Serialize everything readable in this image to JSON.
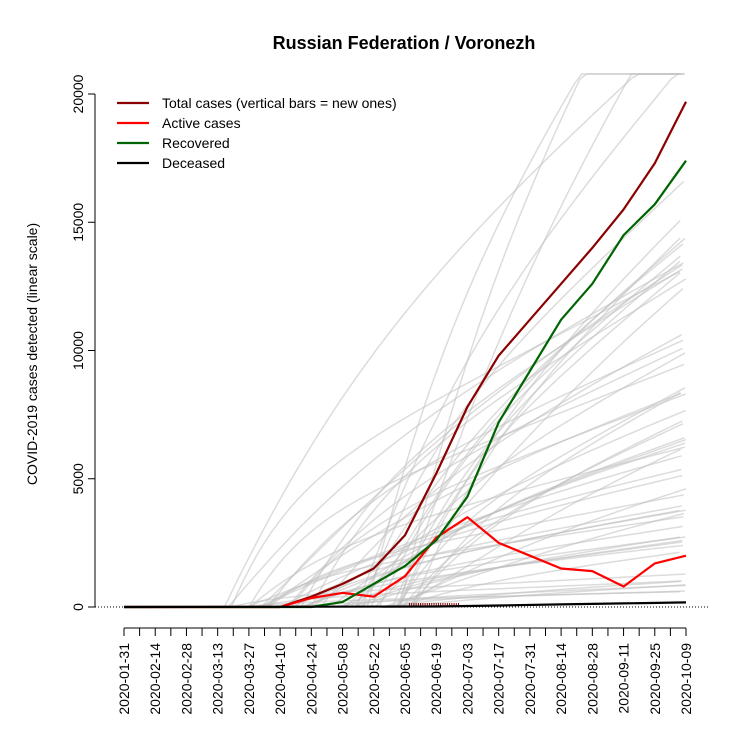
{
  "chart_data": {
    "type": "line",
    "title": "Russian Federation / Voronezh",
    "ylabel": "COVID-2019 cases detected (linear scale)",
    "xlabel": "",
    "ylim": [
      0,
      20000
    ],
    "xlim": [
      "2020-01-31",
      "2020-10-09"
    ],
    "y_ticks": [
      0,
      5000,
      10000,
      15000,
      20000
    ],
    "y_tick_labels": [
      "0",
      "5000",
      "10000",
      "15000",
      "20000"
    ],
    "x_tick_labels": [
      "2020-01-31",
      "2020-02-14",
      "2020-02-28",
      "2020-03-13",
      "2020-03-27",
      "2020-04-10",
      "2020-04-24",
      "2020-05-08",
      "2020-05-22",
      "2020-06-05",
      "2020-06-19",
      "2020-07-03",
      "2020-07-17",
      "2020-07-31",
      "2020-08-14",
      "2020-08-28",
      "2020-09-11",
      "2020-09-25",
      "2020-10-09"
    ],
    "legend": {
      "position": "top-left",
      "entries": [
        {
          "label": "Total cases (vertical bars = new ones)",
          "color": "#8b0000"
        },
        {
          "label": "Active cases",
          "color": "#ff0000"
        },
        {
          "label": "Recovered",
          "color": "#006400"
        },
        {
          "label": "Deceased",
          "color": "#000000"
        }
      ]
    },
    "series": [
      {
        "name": "Total cases (vertical bars = new ones)",
        "color": "#8b0000",
        "points": [
          [
            "2020-01-31",
            0
          ],
          [
            "2020-04-10",
            0
          ],
          [
            "2020-04-24",
            400
          ],
          [
            "2020-05-08",
            900
          ],
          [
            "2020-05-22",
            1500
          ],
          [
            "2020-06-05",
            2800
          ],
          [
            "2020-06-19",
            5200
          ],
          [
            "2020-07-03",
            7800
          ],
          [
            "2020-07-17",
            9800
          ],
          [
            "2020-07-31",
            11200
          ],
          [
            "2020-08-14",
            12600
          ],
          [
            "2020-08-28",
            14000
          ],
          [
            "2020-09-11",
            15500
          ],
          [
            "2020-09-25",
            17300
          ],
          [
            "2020-10-09",
            19700
          ]
        ]
      },
      {
        "name": "Active cases",
        "color": "#ff0000",
        "points": [
          [
            "2020-01-31",
            0
          ],
          [
            "2020-04-10",
            0
          ],
          [
            "2020-04-24",
            350
          ],
          [
            "2020-05-08",
            550
          ],
          [
            "2020-05-22",
            400
          ],
          [
            "2020-06-05",
            1200
          ],
          [
            "2020-06-19",
            2700
          ],
          [
            "2020-07-03",
            3500
          ],
          [
            "2020-07-17",
            2500
          ],
          [
            "2020-07-31",
            2000
          ],
          [
            "2020-08-14",
            1500
          ],
          [
            "2020-08-28",
            1400
          ],
          [
            "2020-09-11",
            800
          ],
          [
            "2020-09-25",
            1700
          ],
          [
            "2020-10-09",
            2000
          ]
        ]
      },
      {
        "name": "Recovered",
        "color": "#006400",
        "points": [
          [
            "2020-01-31",
            0
          ],
          [
            "2020-04-24",
            0
          ],
          [
            "2020-05-08",
            200
          ],
          [
            "2020-05-22",
            900
          ],
          [
            "2020-06-05",
            1600
          ],
          [
            "2020-06-19",
            2600
          ],
          [
            "2020-07-03",
            4300
          ],
          [
            "2020-07-17",
            7200
          ],
          [
            "2020-07-31",
            9200
          ],
          [
            "2020-08-14",
            11200
          ],
          [
            "2020-08-28",
            12600
          ],
          [
            "2020-09-11",
            14500
          ],
          [
            "2020-09-25",
            15700
          ],
          [
            "2020-10-09",
            17400
          ]
        ]
      },
      {
        "name": "Deceased",
        "color": "#000000",
        "points": [
          [
            "2020-01-31",
            0
          ],
          [
            "2020-06-19",
            20
          ],
          [
            "2020-07-17",
            60
          ],
          [
            "2020-08-14",
            100
          ],
          [
            "2020-09-11",
            140
          ],
          [
            "2020-10-09",
            180
          ]
        ]
      }
    ],
    "background_series_color": "#bfbfbf"
  }
}
